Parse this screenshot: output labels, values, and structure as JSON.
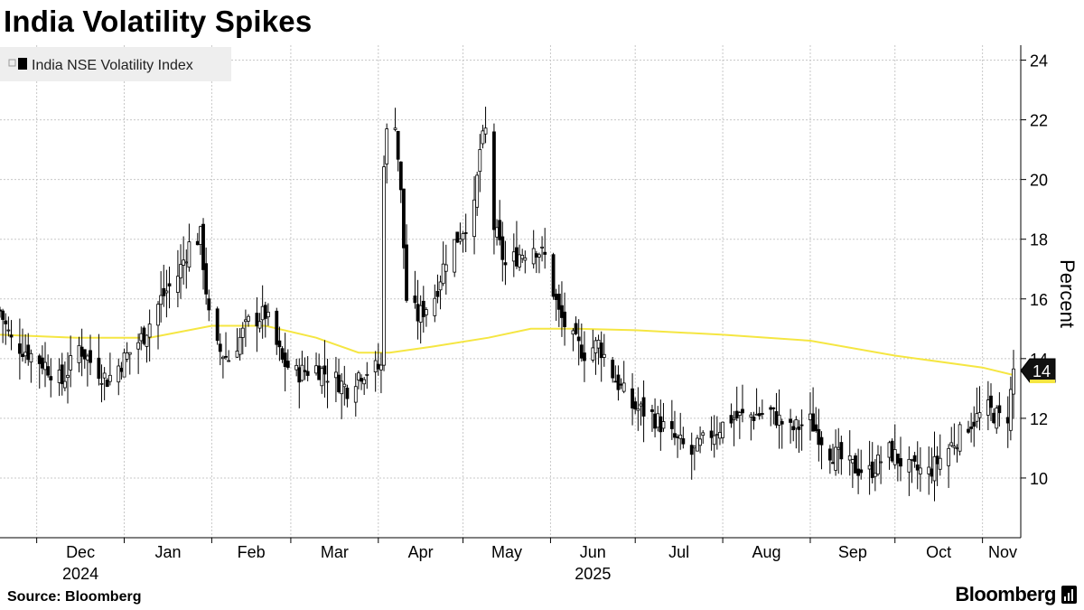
{
  "title": "India Volatility Spikes",
  "source": "Source: Bloomberg",
  "brand": "Bloomberg",
  "colors": {
    "ma_line": "#f5e642",
    "candles": "#000000",
    "grid": "#c8c8c8",
    "legend_bg": "#eeeeee"
  },
  "chart_data": {
    "type": "candlestick",
    "title": "India Volatility Spikes",
    "ylabel": "Percent",
    "ylim": [
      8,
      24.5
    ],
    "yticks": [
      10,
      12,
      14,
      16,
      18,
      20,
      22,
      24
    ],
    "grid": true,
    "legend_position": "top-left",
    "x_range": [
      "2024-11-18",
      "2025-11-12"
    ],
    "month_ticks": [
      {
        "label": "Dec",
        "year": "2024",
        "date": "2024-12-01"
      },
      {
        "label": "Jan",
        "year": "",
        "date": "2025-01-01"
      },
      {
        "label": "Feb",
        "year": "",
        "date": "2025-02-01"
      },
      {
        "label": "Mar",
        "year": "",
        "date": "2025-03-01"
      },
      {
        "label": "Apr",
        "year": "",
        "date": "2025-04-01"
      },
      {
        "label": "May",
        "year": "",
        "date": "2025-05-01"
      },
      {
        "label": "Jun",
        "year": "2025",
        "date": "2025-06-01"
      },
      {
        "label": "Jul",
        "year": "",
        "date": "2025-07-01"
      },
      {
        "label": "Aug",
        "year": "",
        "date": "2025-08-01"
      },
      {
        "label": "Sep",
        "year": "",
        "date": "2025-09-01"
      },
      {
        "label": "Oct",
        "year": "",
        "date": "2025-10-01"
      },
      {
        "label": "Nov",
        "year": "",
        "date": "2025-11-01"
      }
    ],
    "series": [
      {
        "name": "India NSE Volatility Index",
        "kind": "candlestick"
      }
    ],
    "close_keypoints": [
      [
        "2024-11-18",
        15.6
      ],
      [
        "2024-11-22",
        14.6
      ],
      [
        "2024-11-28",
        14.2
      ],
      [
        "2024-12-04",
        13.8
      ],
      [
        "2024-12-10",
        13.2
      ],
      [
        "2024-12-16",
        14.4
      ],
      [
        "2024-12-20",
        13.9
      ],
      [
        "2024-12-26",
        13.3
      ],
      [
        "2025-01-02",
        14.1
      ],
      [
        "2025-01-08",
        14.8
      ],
      [
        "2025-01-14",
        16.0
      ],
      [
        "2025-01-20",
        16.8
      ],
      [
        "2025-01-24",
        17.8
      ],
      [
        "2025-01-28",
        18.1
      ],
      [
        "2025-02-01",
        14.5
      ],
      [
        "2025-02-07",
        14.0
      ],
      [
        "2025-02-14",
        15.2
      ],
      [
        "2025-02-20",
        15.5
      ],
      [
        "2025-02-26",
        13.9
      ],
      [
        "2025-03-03",
        13.5
      ],
      [
        "2025-03-10",
        13.7
      ],
      [
        "2025-03-17",
        13.3
      ],
      [
        "2025-03-21",
        13.0
      ],
      [
        "2025-03-25",
        13.5
      ],
      [
        "2025-03-28",
        13.6
      ],
      [
        "2025-04-02",
        13.7
      ],
      [
        "2025-04-03",
        20.7
      ],
      [
        "2025-04-04",
        21.5
      ],
      [
        "2025-04-07",
        22.0
      ],
      [
        "2025-04-09",
        19.5
      ],
      [
        "2025-04-11",
        16.0
      ],
      [
        "2025-04-15",
        15.4
      ],
      [
        "2025-04-21",
        16.1
      ],
      [
        "2025-04-25",
        17.4
      ],
      [
        "2025-04-30",
        18.2
      ],
      [
        "2025-05-05",
        19.0
      ],
      [
        "2025-05-07",
        21.0
      ],
      [
        "2025-05-09",
        21.6
      ],
      [
        "2025-05-12",
        18.4
      ],
      [
        "2025-05-16",
        17.1
      ],
      [
        "2025-05-21",
        17.5
      ],
      [
        "2025-05-26",
        17.8
      ],
      [
        "2025-05-30",
        17.4
      ],
      [
        "2025-06-04",
        15.5
      ],
      [
        "2025-06-09",
        14.6
      ],
      [
        "2025-06-13",
        14.2
      ],
      [
        "2025-06-18",
        14.5
      ],
      [
        "2025-06-24",
        13.3
      ],
      [
        "2025-06-30",
        12.4
      ],
      [
        "2025-07-07",
        12.1
      ],
      [
        "2025-07-14",
        11.4
      ],
      [
        "2025-07-21",
        10.8
      ],
      [
        "2025-07-28",
        11.5
      ],
      [
        "2025-08-04",
        12.0
      ],
      [
        "2025-08-11",
        12.1
      ],
      [
        "2025-08-18",
        12.2
      ],
      [
        "2025-08-25",
        11.6
      ],
      [
        "2025-09-01",
        11.9
      ],
      [
        "2025-09-08",
        10.9
      ],
      [
        "2025-09-15",
        10.4
      ],
      [
        "2025-09-22",
        10.2
      ],
      [
        "2025-09-29",
        10.9
      ],
      [
        "2025-10-06",
        10.3
      ],
      [
        "2025-10-13",
        10.2
      ],
      [
        "2025-10-20",
        11.0
      ],
      [
        "2025-10-27",
        11.8
      ],
      [
        "2025-11-03",
        12.3
      ],
      [
        "2025-11-07",
        12.0
      ],
      [
        "2025-11-10",
        12.1
      ],
      [
        "2025-11-12",
        13.6
      ]
    ],
    "moving_average": [
      [
        "2024-11-18",
        14.8
      ],
      [
        "2024-12-15",
        14.7
      ],
      [
        "2025-01-10",
        14.7
      ],
      [
        "2025-02-01",
        15.1
      ],
      [
        "2025-02-20",
        15.1
      ],
      [
        "2025-03-10",
        14.7
      ],
      [
        "2025-03-25",
        14.2
      ],
      [
        "2025-04-05",
        14.2
      ],
      [
        "2025-04-20",
        14.4
      ],
      [
        "2025-05-10",
        14.7
      ],
      [
        "2025-05-25",
        15.0
      ],
      [
        "2025-06-10",
        15.0
      ],
      [
        "2025-07-01",
        14.95
      ],
      [
        "2025-08-01",
        14.8
      ],
      [
        "2025-09-01",
        14.6
      ],
      [
        "2025-10-01",
        14.1
      ],
      [
        "2025-11-01",
        13.7
      ],
      [
        "2025-11-12",
        13.45
      ]
    ],
    "last_value_label": "14"
  }
}
